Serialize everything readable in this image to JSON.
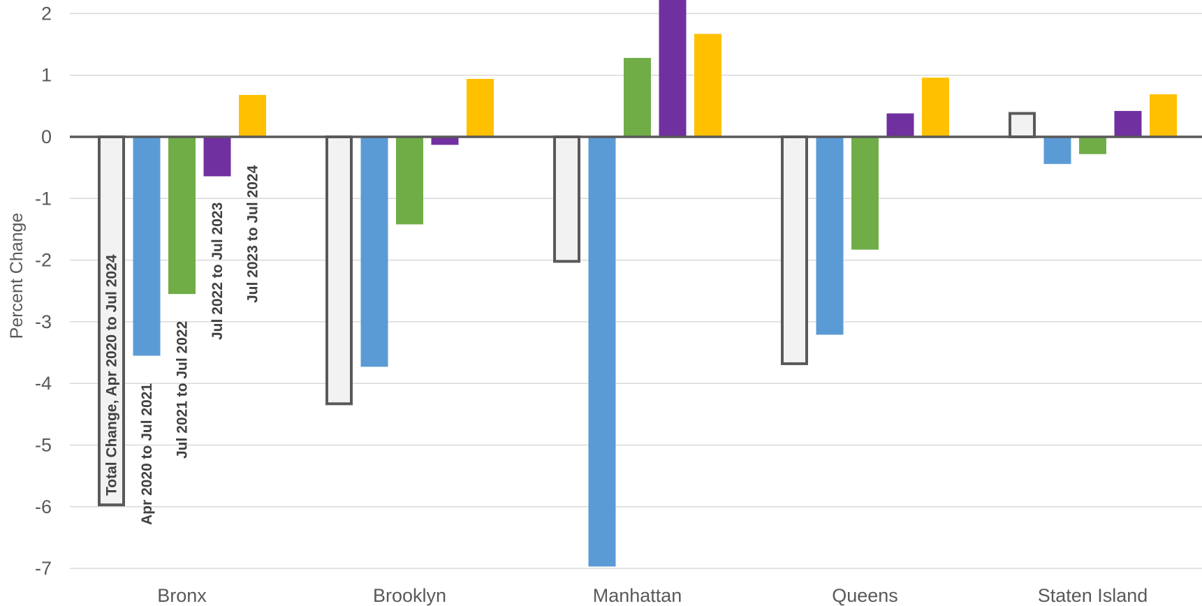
{
  "chart_data": {
    "type": "bar",
    "title": "",
    "xlabel": "",
    "ylabel": "Percent Change",
    "ylim": [
      -7,
      2
    ],
    "yticks": [
      2,
      1,
      0,
      -1,
      -2,
      -3,
      -4,
      -5,
      -6,
      -7
    ],
    "grid": true,
    "legend": "none",
    "categories": [
      "Bronx",
      "Brooklyn",
      "Manhattan",
      "Queens",
      "Staten Island"
    ],
    "series": [
      {
        "name": "Total Change, Apr 2020 to Jul 2024",
        "color": "#F2F2F2",
        "outline": "#595959",
        "values": [
          -5.97,
          -4.33,
          -2.02,
          -3.68,
          0.38
        ]
      },
      {
        "name": "Apr 2020 to Jul 2021",
        "color": "#5B9BD5",
        "values": [
          -3.55,
          -3.73,
          -6.97,
          -3.21,
          -0.44
        ]
      },
      {
        "name": "Jul 2021 to Jul 2022",
        "color": "#70AD47",
        "values": [
          -2.55,
          -1.42,
          1.28,
          -1.83,
          -0.28
        ]
      },
      {
        "name": "Jul 2022 to Jul 2023",
        "color": "#7030A0",
        "values": [
          -0.64,
          -0.13,
          2.3,
          0.38,
          0.42
        ]
      },
      {
        "name": "Jul 2023 to Jul 2024",
        "color": "#FFC000",
        "values": [
          0.68,
          0.94,
          1.67,
          0.96,
          0.69
        ]
      }
    ],
    "baseline_color": "#595959",
    "gridline_color": "#D9D9D9"
  }
}
